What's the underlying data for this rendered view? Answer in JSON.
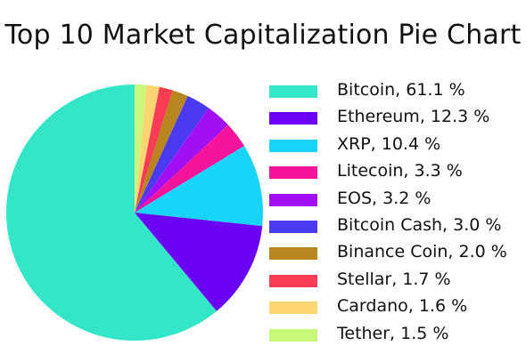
{
  "chart_data": {
    "type": "pie",
    "title": "Top 10 Market Capitalization Pie Chart",
    "legend_position": "right",
    "start_angle": "top",
    "direction": "clockwise-from-top-reversed",
    "slices": [
      {
        "label": "Bitcoin, 61.1 %",
        "name": "Bitcoin",
        "value": 61.1,
        "color": "#33e6c8"
      },
      {
        "label": "Ethereum, 12.3 %",
        "name": "Ethereum",
        "value": 12.3,
        "color": "#6a00f4"
      },
      {
        "label": "XRP, 10.4 %",
        "name": "XRP",
        "value": 10.4,
        "color": "#18d4fa"
      },
      {
        "label": "Litecoin, 3.3 %",
        "name": "Litecoin",
        "value": 3.3,
        "color": "#f5149a"
      },
      {
        "label": "EOS, 3.2 %",
        "name": "EOS",
        "value": 3.2,
        "color": "#a20ff5"
      },
      {
        "label": "Bitcoin Cash, 3.0 %",
        "name": "Bitcoin Cash",
        "value": 3.0,
        "color": "#4a3af2"
      },
      {
        "label": "Binance Coin, 2.0 %",
        "name": "Binance Coin",
        "value": 2.0,
        "color": "#b8861f"
      },
      {
        "label": "Stellar, 1.7 %",
        "name": "Stellar",
        "value": 1.7,
        "color": "#fa3c54"
      },
      {
        "label": "Cardano, 1.6 %",
        "name": "Cardano",
        "value": 1.6,
        "color": "#ffd572"
      },
      {
        "label": "Tether, 1.5 %",
        "name": "Tether",
        "value": 1.5,
        "color": "#c8f77a"
      }
    ]
  }
}
